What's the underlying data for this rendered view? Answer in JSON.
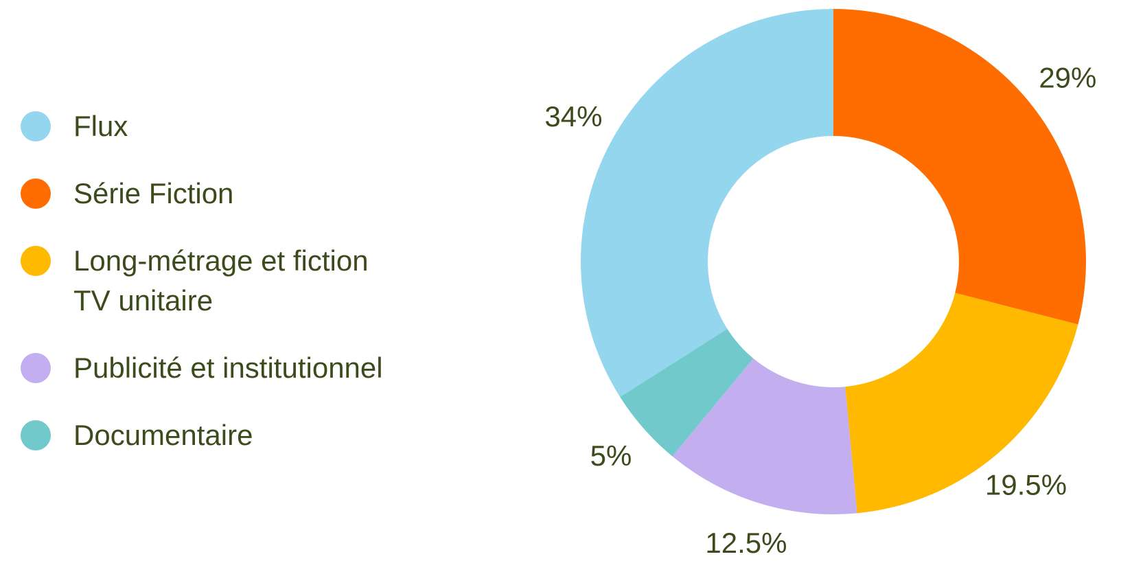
{
  "chart_data": {
    "type": "donut",
    "categories": [
      "Flux",
      "Série Fiction",
      "Long-métrage et fiction TV unitaire",
      "Publicité et institutionnel",
      "Documentaire"
    ],
    "values": [
      34,
      29,
      19.5,
      12.5,
      5
    ],
    "value_labels": [
      "34%",
      "29%",
      "19.5%",
      "12.5%",
      "5%"
    ],
    "colors": [
      "#94d6ee",
      "#ff6d00",
      "#ffb900",
      "#c3aff0",
      "#71c9cc"
    ],
    "legend": "left"
  }
}
